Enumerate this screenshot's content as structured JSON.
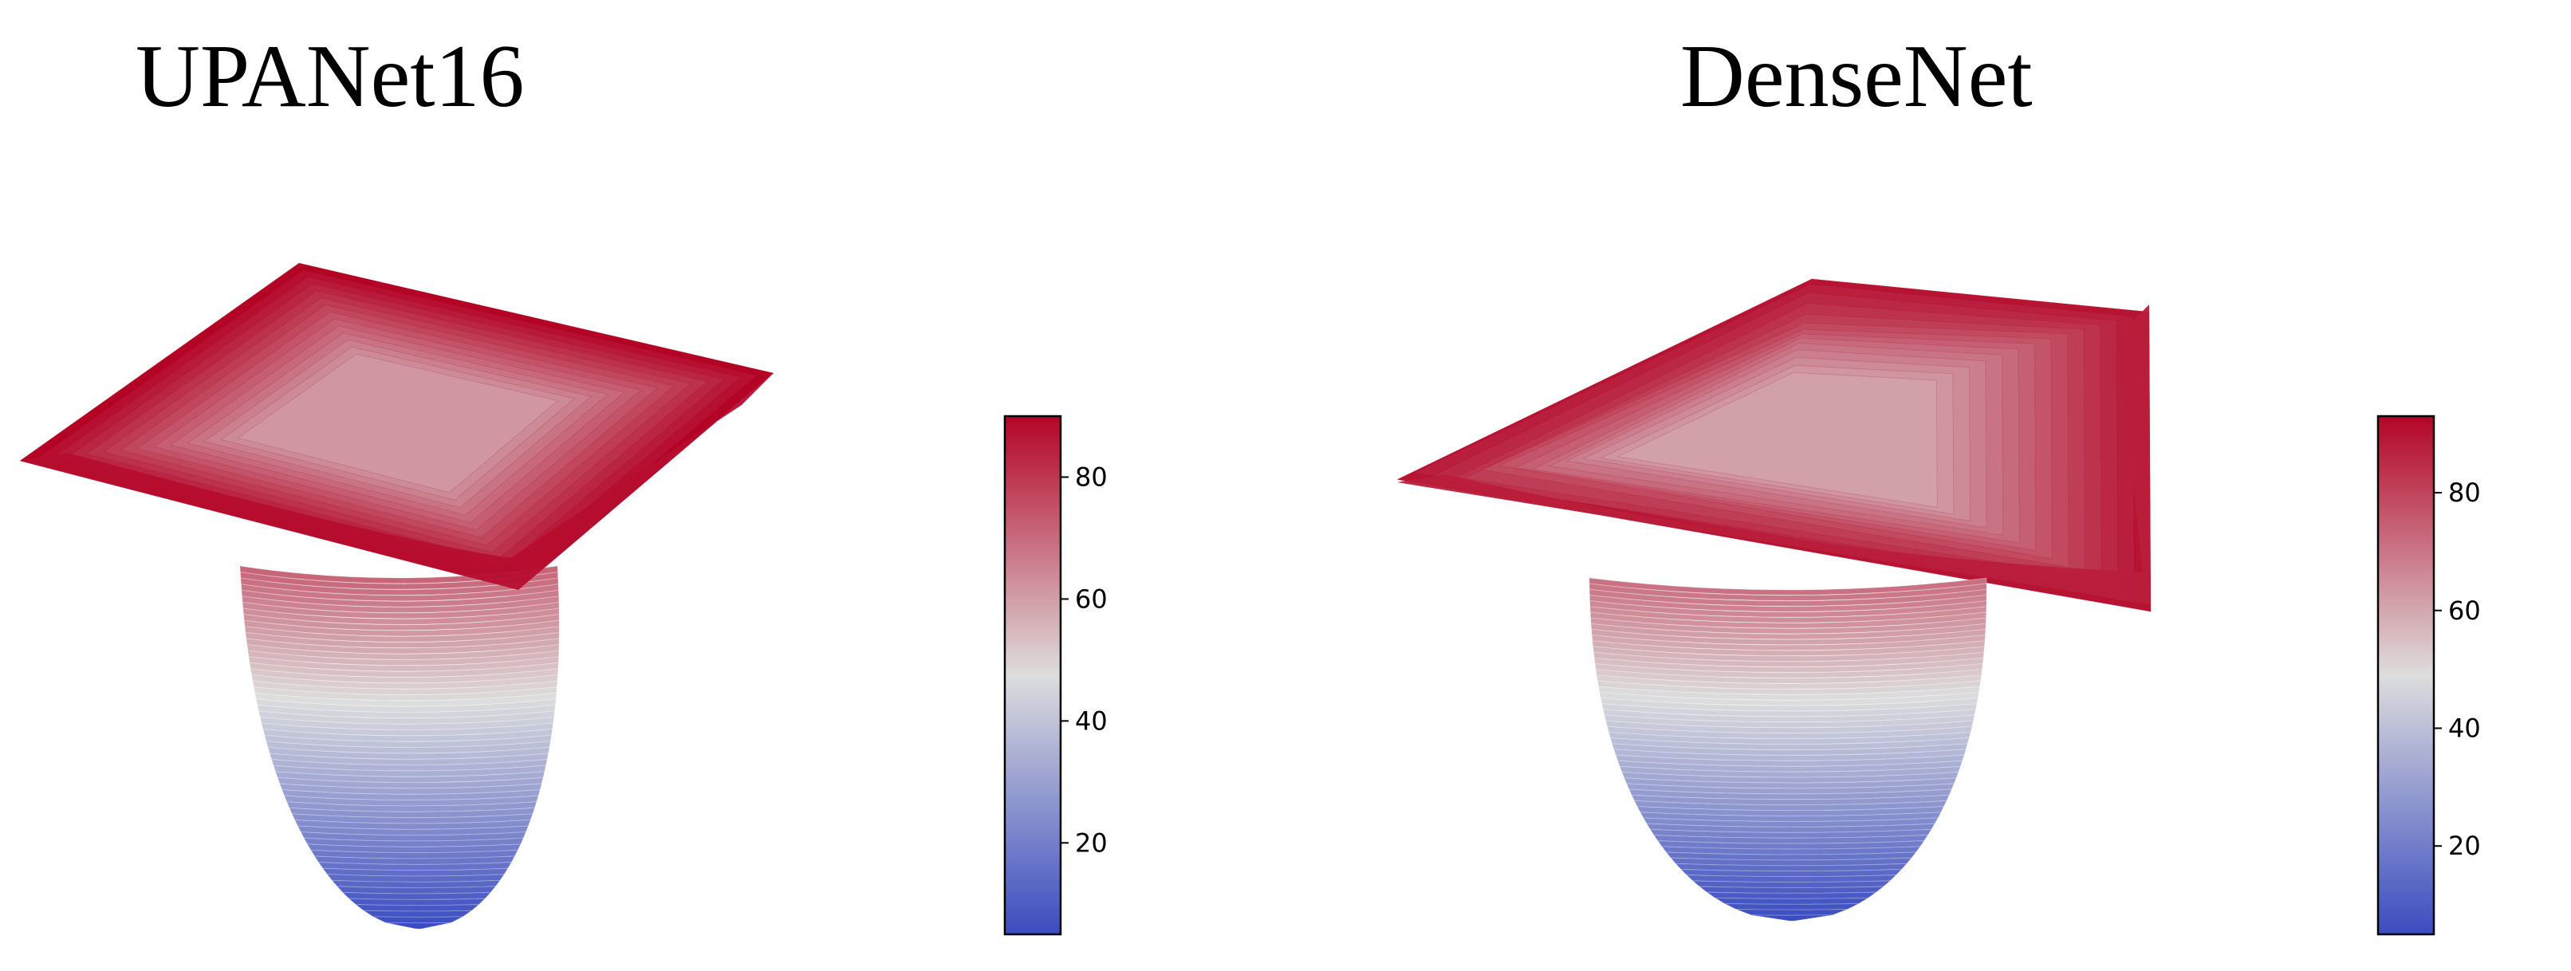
{
  "chart_data": [
    {
      "type": "surface",
      "title": "UPANet16",
      "colormap": "coolwarm",
      "colors": {
        "low": "#3b4cc0",
        "mid": "#dddddd",
        "high": "#b40426"
      },
      "colorbar": {
        "range": [
          5,
          90
        ],
        "ticks": [
          20,
          40,
          60,
          80
        ],
        "tick_labels": [
          "20",
          "40",
          "60",
          "80"
        ]
      },
      "surface": {
        "plateau_value": 90,
        "minimum_value": 5,
        "shape": "deep narrow basin with flat high plateau"
      }
    },
    {
      "type": "surface",
      "title": "DenseNet",
      "colormap": "coolwarm",
      "colors": {
        "low": "#3b4cc0",
        "mid": "#dddddd",
        "high": "#b40426"
      },
      "colorbar": {
        "range": [
          5,
          93
        ],
        "ticks": [
          20,
          40,
          60,
          80
        ],
        "tick_labels": [
          "20",
          "40",
          "60",
          "80"
        ]
      },
      "surface": {
        "plateau_value": 90,
        "minimum_value": 5,
        "shape": "deep narrow basin with rippled high plateau"
      }
    }
  ]
}
